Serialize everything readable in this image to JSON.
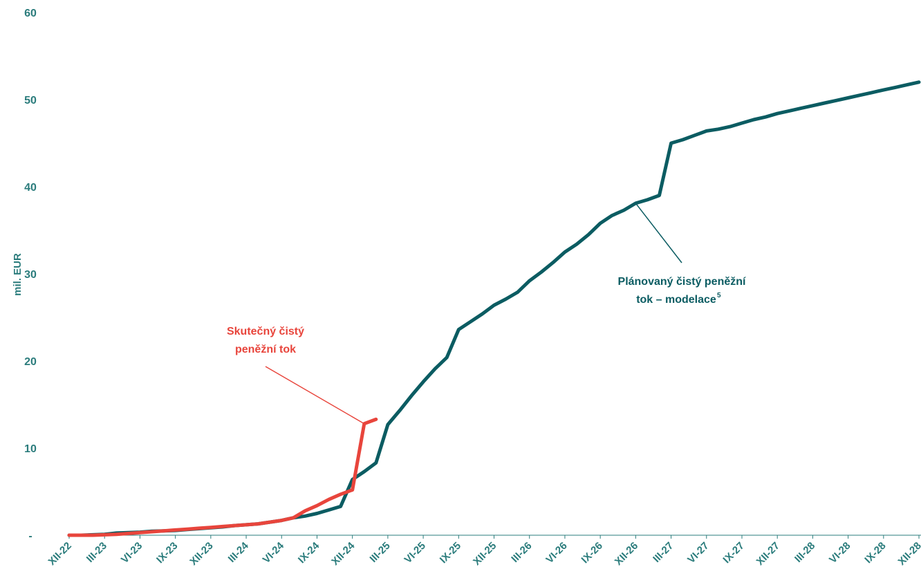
{
  "chart_data": {
    "type": "line",
    "title": "",
    "ylabel": "mil. EUR",
    "xlabel": "",
    "ylim": [
      0,
      60
    ],
    "y_ticks": [
      {
        "value": 0,
        "label": "-"
      },
      {
        "value": 10,
        "label": "10"
      },
      {
        "value": 20,
        "label": "20"
      },
      {
        "value": 30,
        "label": "30"
      },
      {
        "value": 40,
        "label": "40"
      },
      {
        "value": 50,
        "label": "50"
      },
      {
        "value": 60,
        "label": "60"
      }
    ],
    "x_tick_labels": [
      "XII-22",
      "III-23",
      "VI-23",
      "IX-23",
      "XII-23",
      "III-24",
      "VI-24",
      "IX-24",
      "XII-24",
      "III-25",
      "VI-25",
      "IX-25",
      "XII-25",
      "III-26",
      "VI-26",
      "IX-26",
      "XII-26",
      "III-27",
      "VI-27",
      "IX-27",
      "XII-27",
      "III-28",
      "VI-28",
      "IX-28",
      "XII-28"
    ],
    "grid": false,
    "legend": "none",
    "series": [
      {
        "color": "#0b5c62",
        "x": [
          0,
          1,
          2,
          3,
          4,
          5,
          6,
          7,
          8,
          9,
          10,
          11,
          12,
          13,
          14,
          15,
          16,
          17,
          18,
          19,
          20,
          21,
          22,
          23,
          24,
          25,
          26,
          27,
          28,
          29,
          30,
          31,
          32,
          33,
          34,
          35,
          36,
          37,
          38,
          39,
          40,
          41,
          42,
          43,
          44,
          45,
          46,
          47,
          48,
          49,
          50,
          51,
          52,
          53,
          54,
          55,
          56,
          57,
          58,
          59,
          60,
          61,
          62,
          63,
          64,
          65,
          66,
          67,
          68,
          69,
          70,
          71,
          72
        ],
        "values": [
          0,
          0,
          0.05,
          0.1,
          0.25,
          0.3,
          0.35,
          0.45,
          0.5,
          0.55,
          0.65,
          0.75,
          0.85,
          0.95,
          1.1,
          1.2,
          1.3,
          1.5,
          1.7,
          2.0,
          2.2,
          2.5,
          2.9,
          3.3,
          6.4,
          7.3,
          8.3,
          12.7,
          14.3,
          16.0,
          17.6,
          19.1,
          20.4,
          23.6,
          24.5,
          25.4,
          26.4,
          27.1,
          27.9,
          29.2,
          30.2,
          31.3,
          32.5,
          33.4,
          34.5,
          35.8,
          36.7,
          37.3,
          38.1,
          38.5,
          39.0,
          45.0,
          45.4,
          45.9,
          46.4,
          46.6,
          46.9,
          47.3,
          47.7,
          48.0,
          48.4,
          48.7,
          49.0,
          49.3,
          49.6,
          49.9,
          50.2,
          50.5,
          50.8,
          51.1,
          51.4,
          51.7,
          52.0
        ]
      },
      {
        "color": "#e8453c",
        "x": [
          0,
          1,
          2,
          3,
          4,
          5,
          6,
          7,
          8,
          9,
          10,
          11,
          12,
          13,
          14,
          15,
          16,
          17,
          18,
          19,
          20,
          21,
          22,
          23,
          24,
          25,
          26
        ],
        "values": [
          0,
          0,
          0,
          0.05,
          0.1,
          0.2,
          0.3,
          0.4,
          0.5,
          0.6,
          0.7,
          0.8,
          0.9,
          1.0,
          1.1,
          1.2,
          1.3,
          1.5,
          1.7,
          2.0,
          2.8,
          3.4,
          4.1,
          4.7,
          5.2,
          12.8,
          13.3
        ]
      }
    ],
    "annotations": [
      {
        "lines": [
          "Plánovaný čistý peněžní",
          "tok – modelace"
        ],
        "superscript": "5",
        "series": 0,
        "point_x": 48
      },
      {
        "lines": [
          "Skutečný čistý",
          "peněžní tok"
        ],
        "series": 1,
        "point_x": 25
      }
    ]
  }
}
